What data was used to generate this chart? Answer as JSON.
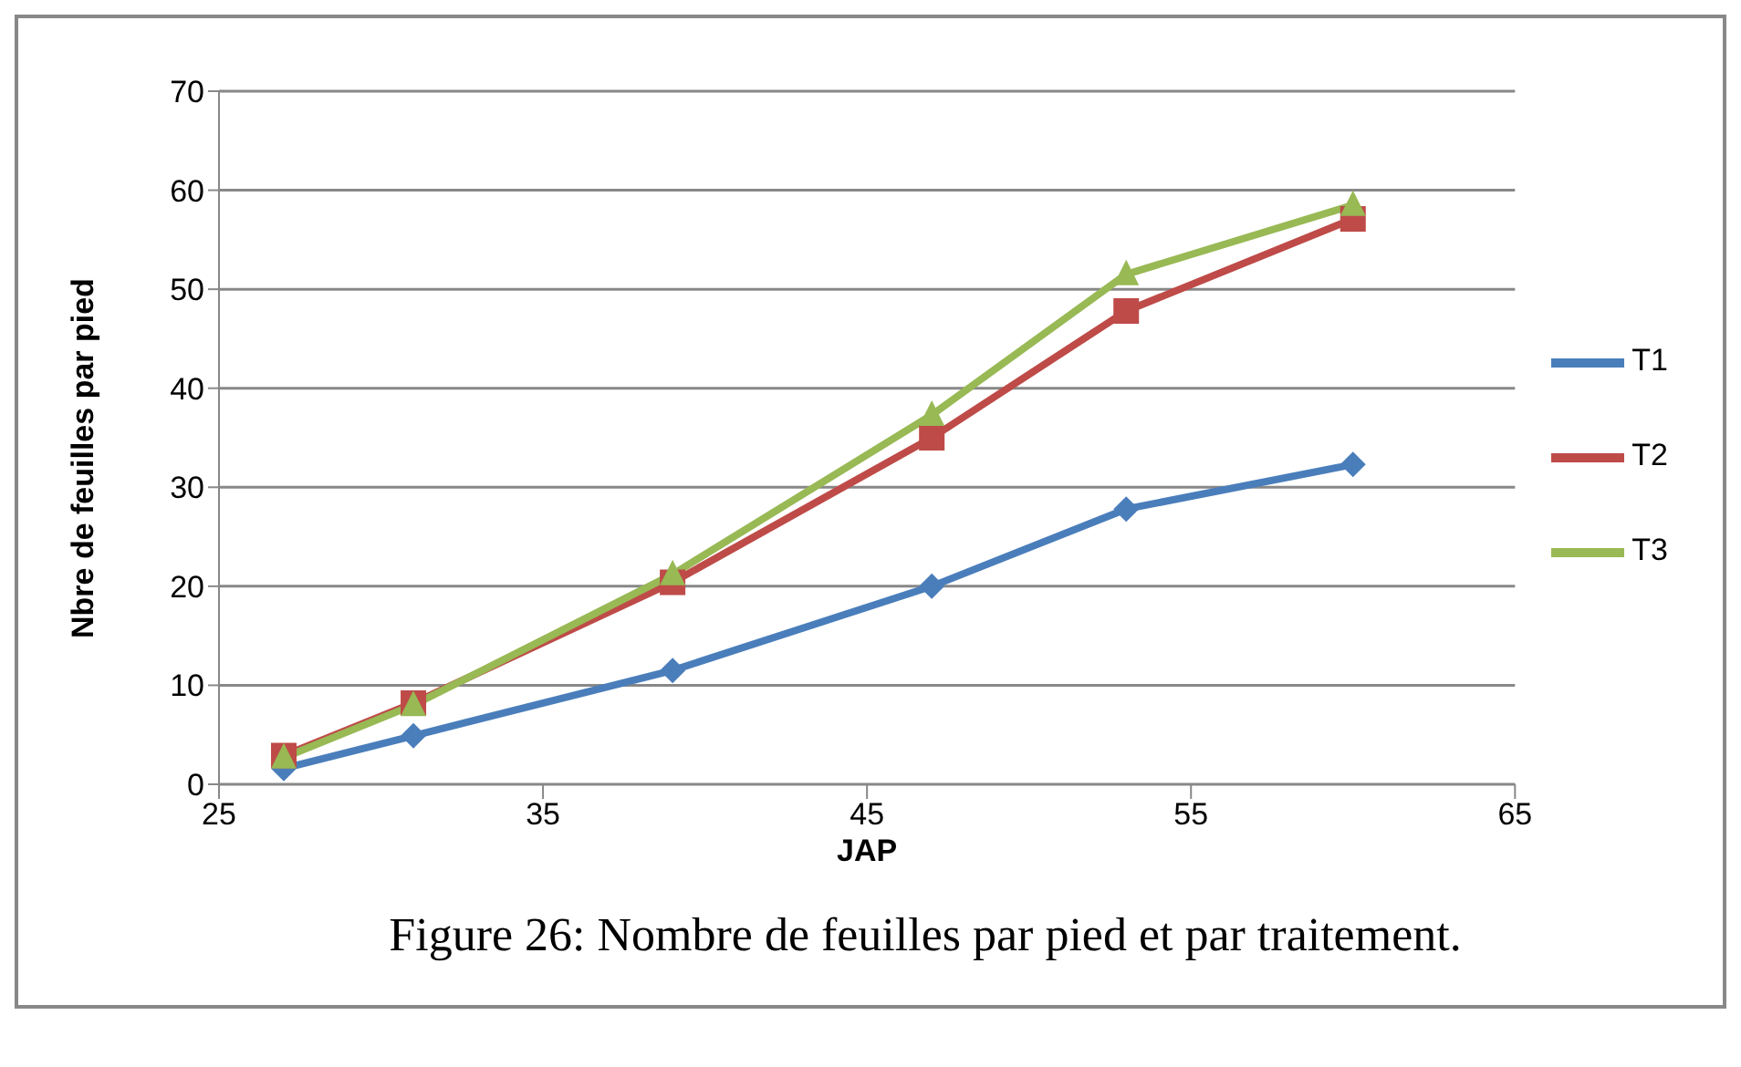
{
  "chart_data": {
    "type": "line",
    "title": "Figure 26: Nombre de feuilles par pied et par traitement.",
    "xlabel": "JAP",
    "ylabel": "Nbre de feuilles par pied",
    "x": [
      27,
      31,
      39,
      47,
      53,
      60
    ],
    "series": [
      {
        "name": "T1",
        "color": "#4a7ebb",
        "marker": "diamond",
        "values": [
          1.6,
          4.9,
          11.5,
          20,
          27.8,
          32.3
        ]
      },
      {
        "name": "T2",
        "color": "#be4b48",
        "marker": "square",
        "values": [
          2.9,
          8.2,
          20.4,
          35,
          47.8,
          57.1
        ]
      },
      {
        "name": "T3",
        "color": "#98b954",
        "marker": "triangle",
        "values": [
          2.7,
          8,
          21.2,
          37.3,
          51.5,
          58.5
        ]
      }
    ],
    "xlim": [
      25,
      65
    ],
    "xticks": [
      25,
      35,
      45,
      55,
      65
    ],
    "ylim": [
      0,
      70
    ],
    "yticks": [
      0,
      10,
      20,
      30,
      40,
      50,
      60,
      70
    ],
    "grid": "y",
    "legend": "right",
    "line_style": "solid"
  }
}
